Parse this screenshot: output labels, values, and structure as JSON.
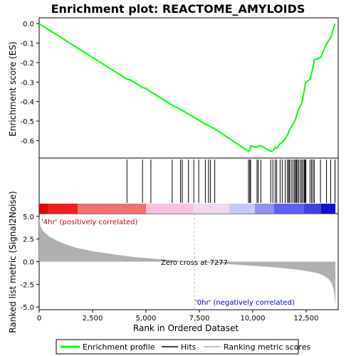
{
  "title": "Enrichment plot: REACTOME_AMYLOIDS",
  "colors": {
    "es_line": "#00ff00",
    "hit": "#000000",
    "metric": "#b0b0b0",
    "zero_cross_line": "#c0c0c0",
    "pos_label": "#cc0000",
    "neg_label": "#0000cc"
  },
  "chart_data": [
    {
      "type": "line",
      "name": "enrichment-profile",
      "ylabel": "Enrichment score (ES)",
      "xlim": [
        0,
        14000
      ],
      "ylim": [
        -0.69,
        0.03
      ],
      "yticks": [
        0.0,
        -0.1,
        -0.2,
        -0.3,
        -0.4,
        -0.5,
        -0.6
      ],
      "ytick_labels": [
        "0.0",
        "-0.1",
        "-0.2",
        "-0.3",
        "-0.4",
        "-0.5",
        "-0.6"
      ],
      "series": [
        {
          "name": "Enrichment profile",
          "x": [
            0,
            4110,
            4250,
            4840,
            5000,
            5230,
            6230,
            6620,
            6700,
            6990,
            7240,
            7470,
            7780,
            7930,
            8020,
            8220,
            9800,
            9860,
            9900,
            10200,
            10260,
            10380,
            10840,
            10940,
            11050,
            11120,
            11280,
            11380,
            11520,
            11620,
            11680,
            11720,
            11800,
            11880,
            11960,
            12000,
            12050,
            12100,
            12160,
            12240,
            12300,
            12360,
            12420,
            12450,
            12490,
            12680,
            12750,
            12820,
            12880,
            13170,
            13450,
            13650,
            13850
          ],
          "y": [
            0.0,
            -0.285,
            -0.288,
            -0.328,
            -0.333,
            -0.35,
            -0.418,
            -0.44,
            -0.445,
            -0.465,
            -0.48,
            -0.495,
            -0.517,
            -0.523,
            -0.528,
            -0.54,
            -0.655,
            -0.65,
            -0.628,
            -0.635,
            -0.628,
            -0.627,
            -0.655,
            -0.652,
            -0.635,
            -0.64,
            -0.615,
            -0.61,
            -0.59,
            -0.573,
            -0.558,
            -0.545,
            -0.53,
            -0.518,
            -0.505,
            -0.49,
            -0.473,
            -0.455,
            -0.438,
            -0.42,
            -0.405,
            -0.37,
            -0.34,
            -0.315,
            -0.3,
            -0.285,
            -0.255,
            -0.225,
            -0.185,
            -0.175,
            -0.105,
            -0.07,
            0.0
          ]
        }
      ]
    },
    {
      "type": "scatter",
      "name": "hits",
      "xlim": [
        0,
        14000
      ],
      "x": [
        4110,
        4840,
        5230,
        6230,
        6620,
        6700,
        6990,
        7240,
        7470,
        7780,
        7930,
        8020,
        8220,
        9800,
        9860,
        9900,
        10200,
        10260,
        10380,
        10840,
        10940,
        11050,
        11120,
        11280,
        11380,
        11520,
        11620,
        11680,
        11720,
        11800,
        11880,
        11960,
        12000,
        12050,
        12100,
        12160,
        12240,
        12300,
        12360,
        12420,
        12450,
        12490,
        12680,
        12750,
        12820,
        12880,
        13170,
        13450,
        13650,
        13850
      ],
      "legend": "Hits"
    },
    {
      "type": "area",
      "name": "ranked-list-metric",
      "xlabel": "Rank in Ordered Dataset",
      "ylabel": "Ranked list metric (Signal2Noise)",
      "xlim": [
        0,
        14000
      ],
      "ylim": [
        -5.3,
        5.3
      ],
      "xticks": [
        0,
        2500,
        5000,
        7500,
        10000,
        12500
      ],
      "xtick_labels": [
        "0",
        "2,500",
        "5,000",
        "7,500",
        "10,000",
        "12,500"
      ],
      "yticks": [
        5.0,
        2.5,
        0.0,
        -2.5,
        -5.0
      ],
      "ytick_labels": [
        "5.0",
        "2.5",
        "0.0",
        "-2.5",
        "-5.0"
      ],
      "x": [
        0,
        50,
        150,
        300,
        500,
        800,
        1200,
        1700,
        2500,
        3500,
        4500,
        5500,
        6500,
        7277,
        8000,
        9000,
        10000,
        11000,
        11800,
        12500,
        13000,
        13300,
        13550,
        13700,
        13800,
        13870
      ],
      "y": [
        4.8,
        4.0,
        3.5,
        3.1,
        2.75,
        2.35,
        1.95,
        1.55,
        1.15,
        0.8,
        0.5,
        0.3,
        0.12,
        0.0,
        -0.12,
        -0.3,
        -0.45,
        -0.62,
        -0.8,
        -1.02,
        -1.25,
        -1.5,
        -1.9,
        -2.4,
        -3.2,
        -4.9
      ],
      "annotations": {
        "zero_cross": "Zero cross at 7277",
        "zero_cross_x": 7277,
        "pos_label": "'4hr' (positively correlated)",
        "neg_label": "'0hr' (negatively correlated)"
      }
    }
  ],
  "legend": {
    "items": [
      {
        "label": "Enrichment profile",
        "color": "#00ff00"
      },
      {
        "label": "Hits",
        "color": "#000000"
      },
      {
        "label": "Ranking metric scores",
        "color": "#b0b0b0"
      }
    ]
  }
}
